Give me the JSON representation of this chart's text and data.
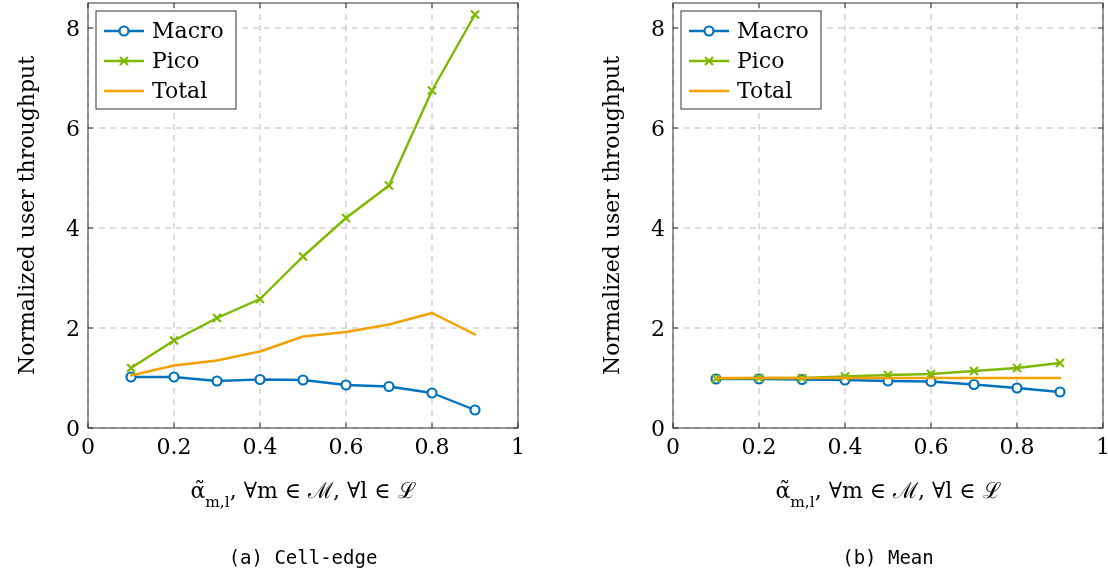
{
  "chart_data": [
    {
      "type": "line",
      "title": "(a) Cell-edge",
      "xlabel": "α̃$_{m,l}$,  ∀m ∈ ℳ,  ∀l ∈ ℒ",
      "ylabel": "Normalized user throughput",
      "x": [
        0.1,
        0.2,
        0.3,
        0.4,
        0.5,
        0.6,
        0.7,
        0.8,
        0.9
      ],
      "xlim": [
        0,
        1
      ],
      "xticks": [
        0,
        0.2,
        0.4,
        0.6,
        0.8,
        1
      ],
      "ylim": [
        0,
        8.5
      ],
      "yticks": [
        0,
        2,
        4,
        6,
        8
      ],
      "grid": true,
      "legend": "top left",
      "series": [
        {
          "name": "Macro",
          "color": "#0072bd",
          "marker": "circle",
          "values": [
            1.02,
            1.02,
            0.94,
            0.97,
            0.96,
            0.86,
            0.83,
            0.7,
            0.36
          ]
        },
        {
          "name": "Pico",
          "color": "#7fb800",
          "marker": "cross",
          "values": [
            1.2,
            1.75,
            2.2,
            2.58,
            3.43,
            4.2,
            4.85,
            6.75,
            8.27
          ]
        },
        {
          "name": "Total",
          "color": "#f2a100",
          "marker": "none",
          "values": [
            1.05,
            1.25,
            1.35,
            1.53,
            1.83,
            1.92,
            2.07,
            2.3,
            1.87
          ]
        }
      ]
    },
    {
      "type": "line",
      "title": "(b) Mean",
      "xlabel": "α̃$_{m,l}$,  ∀m ∈ ℳ,  ∀l ∈ ℒ",
      "ylabel": "Normalized user throughput",
      "x": [
        0.1,
        0.2,
        0.3,
        0.4,
        0.5,
        0.6,
        0.7,
        0.8,
        0.9
      ],
      "xlim": [
        0,
        1
      ],
      "xticks": [
        0,
        0.2,
        0.4,
        0.6,
        0.8,
        1
      ],
      "ylim": [
        0,
        8.5
      ],
      "yticks": [
        0,
        2,
        4,
        6,
        8
      ],
      "grid": true,
      "legend": "top left",
      "series": [
        {
          "name": "Macro",
          "color": "#0072bd",
          "marker": "circle",
          "values": [
            0.98,
            0.98,
            0.97,
            0.96,
            0.94,
            0.93,
            0.87,
            0.8,
            0.72
          ]
        },
        {
          "name": "Pico",
          "color": "#7fb800",
          "marker": "cross",
          "values": [
            0.99,
            1.0,
            1.0,
            1.03,
            1.06,
            1.08,
            1.14,
            1.2,
            1.3
          ]
        },
        {
          "name": "Total",
          "color": "#f2a100",
          "marker": "none",
          "values": [
            1.0,
            1.0,
            1.0,
            1.0,
            1.0,
            1.0,
            1.0,
            1.0,
            1.0
          ]
        }
      ]
    }
  ]
}
